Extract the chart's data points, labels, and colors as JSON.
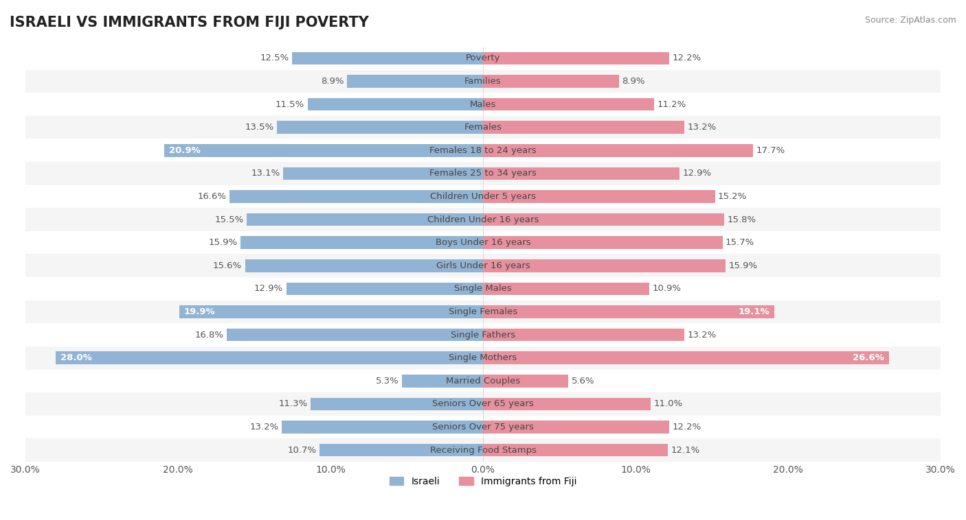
{
  "title": "ISRAELI VS IMMIGRANTS FROM FIJI POVERTY",
  "source": "Source: ZipAtlas.com",
  "categories": [
    "Poverty",
    "Families",
    "Males",
    "Females",
    "Females 18 to 24 years",
    "Females 25 to 34 years",
    "Children Under 5 years",
    "Children Under 16 years",
    "Boys Under 16 years",
    "Girls Under 16 years",
    "Single Males",
    "Single Females",
    "Single Fathers",
    "Single Mothers",
    "Married Couples",
    "Seniors Over 65 years",
    "Seniors Over 75 years",
    "Receiving Food Stamps"
  ],
  "israeli": [
    12.5,
    8.9,
    11.5,
    13.5,
    20.9,
    13.1,
    16.6,
    15.5,
    15.9,
    15.6,
    12.9,
    19.9,
    16.8,
    28.0,
    5.3,
    11.3,
    13.2,
    10.7
  ],
  "fiji": [
    12.2,
    8.9,
    11.2,
    13.2,
    17.7,
    12.9,
    15.2,
    15.8,
    15.7,
    15.9,
    10.9,
    19.1,
    13.2,
    26.6,
    5.6,
    11.0,
    12.2,
    12.1
  ],
  "israeli_color": "#92b4d4",
  "fiji_color": "#e8919e",
  "israeli_label_color_default": "#555555",
  "fiji_label_color_default": "#555555",
  "israeli_label_color_highlight": "#ffffff",
  "fiji_label_color_highlight": "#ffffff",
  "highlight_israeli": [
    4,
    11,
    13
  ],
  "highlight_fiji": [
    11,
    13
  ],
  "bg_row_even": "#f5f5f5",
  "bg_row_odd": "#ffffff",
  "axis_limit": 30.0,
  "bar_height": 0.55,
  "font_size_labels": 9.5,
  "font_size_title": 15,
  "font_size_ticks": 10,
  "legend_labels": [
    "Israeli",
    "Immigrants from Fiji"
  ]
}
